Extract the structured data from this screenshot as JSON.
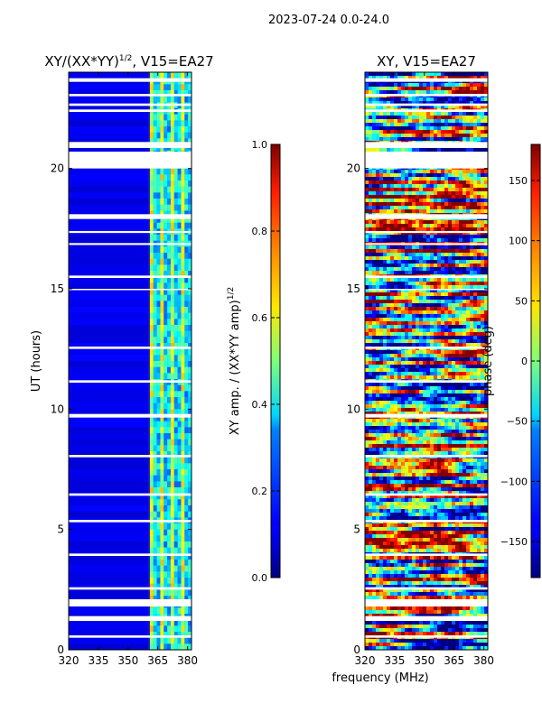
{
  "figure": {
    "suptitle": "2023-07-24 0.0-24.0",
    "xlabel": "frequency (MHz)"
  },
  "chart_data": [
    {
      "type": "heatmap",
      "title_prefix": "XY/(XX*YY)",
      "title_exp": "1/2",
      "title_suffix": ", V15=EA27",
      "xlabel": "",
      "ylabel": "UT (hours)",
      "xlim": [
        320,
        382
      ],
      "ylim": [
        0,
        24
      ],
      "xticks": [
        320,
        335,
        350,
        365,
        380
      ],
      "yticks": [
        0,
        5,
        10,
        15,
        20
      ],
      "colormap": "jet",
      "colorbar": {
        "label_prefix": "XY amp. / (XX*YY amp)",
        "label_exp": "1/2",
        "range": [
          0.0,
          1.0
        ],
        "ticks": [
          0.0,
          0.2,
          0.4,
          0.6,
          0.8,
          1.0
        ],
        "tick_labels": [
          "0.0",
          "0.2",
          "0.4",
          "0.6",
          "0.8",
          "1.0"
        ]
      },
      "description_values": {
        "low_band_MHz": [
          320,
          360
        ],
        "low_band_typical_value": 0.05,
        "high_band_MHz": [
          360,
          382
        ],
        "high_band_typical_value_range": [
          0.1,
          0.5
        ]
      }
    },
    {
      "type": "heatmap",
      "title_prefix": "XY, V15=EA27",
      "title_exp": "",
      "title_suffix": "",
      "xlabel": "",
      "ylabel": "",
      "xlim": [
        320,
        382
      ],
      "ylim": [
        0,
        24
      ],
      "xticks": [
        320,
        335,
        350,
        365,
        380
      ],
      "yticks": [
        0,
        5,
        10,
        15,
        20
      ],
      "colormap": "jet",
      "colorbar": {
        "label_prefix": "phase (deg)",
        "label_exp": "",
        "range": [
          -180,
          180
        ],
        "ticks": [
          -150,
          -100,
          -50,
          0,
          50,
          100,
          150
        ],
        "tick_labels": [
          "−150",
          "−100",
          "−50",
          "0",
          "50",
          "100",
          "150"
        ]
      },
      "description_values": {
        "value_range_deg": [
          -180,
          180
        ],
        "pattern": "noisy phase, mixed values across band"
      }
    }
  ],
  "masked_time_bands_hours": [
    [
      23.6,
      23.75
    ],
    [
      23.0,
      23.1
    ],
    [
      22.6,
      22.7
    ],
    [
      22.35,
      22.45
    ],
    [
      21.1,
      20.85
    ],
    [
      20.7,
      20.0
    ],
    [
      18.1,
      17.9
    ],
    [
      17.4,
      17.32
    ],
    [
      16.9,
      16.82
    ],
    [
      15.55,
      15.45
    ],
    [
      15.0,
      14.95
    ],
    [
      12.6,
      12.5
    ],
    [
      11.2,
      11.1
    ],
    [
      9.8,
      9.65
    ],
    [
      8.1,
      8.0
    ],
    [
      6.5,
      6.4
    ],
    [
      5.4,
      5.3
    ],
    [
      4.0,
      3.9
    ],
    [
      2.6,
      2.5
    ],
    [
      2.1,
      1.8
    ],
    [
      1.4,
      1.2
    ],
    [
      0.6,
      0.5
    ]
  ]
}
